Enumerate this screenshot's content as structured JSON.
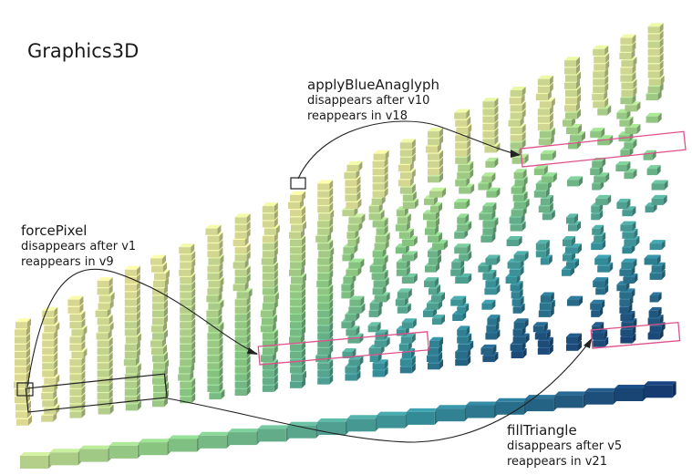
{
  "title": "Graphics3D",
  "annotations": {
    "apply_blue_anaglyph": {
      "name": "applyBlueAnaglyph",
      "line1": "disappears after v10",
      "line2": "reappears in v18"
    },
    "force_pixel": {
      "name": "forcePixel",
      "line1": "disappears after v1",
      "line2": "reappears in v9"
    },
    "fill_triangle": {
      "name": "fillTriangle",
      "line1": "disappears after v5",
      "line2": "reappears in v21"
    }
  },
  "colors": {
    "background": "#ffffff",
    "column_light": "#f0eca0",
    "column_mid": "#8fd38a",
    "column_teal": "#3a9aa6",
    "column_dark": "#17407a",
    "highlight_box": "#e0508a",
    "selection_box": "#222222"
  }
}
